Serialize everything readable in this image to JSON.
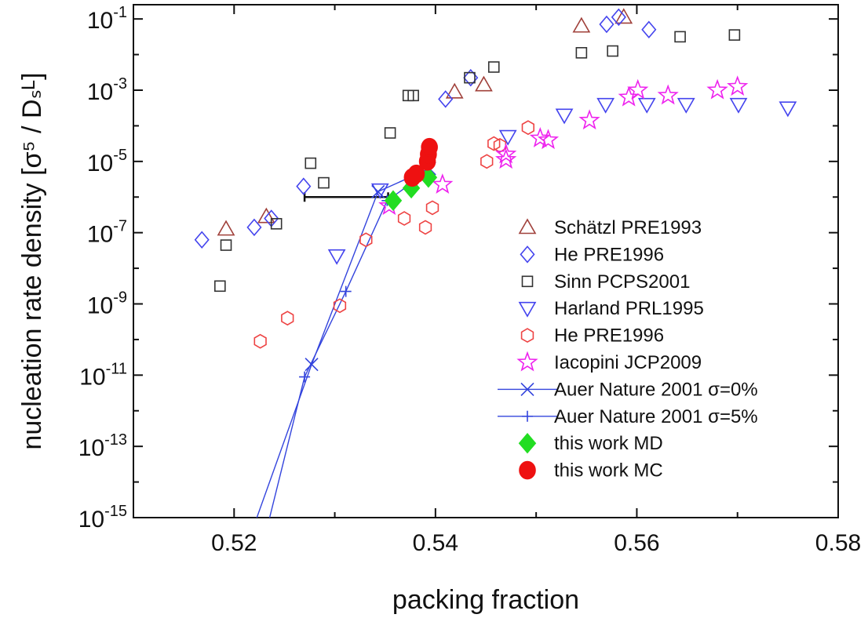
{
  "chart_data": {
    "type": "scatter",
    "xlabel": "packing fraction",
    "ylabel": "nucleation rate density [σ⁵ / Dₛᴸ]",
    "xlim": [
      0.51,
      0.58
    ],
    "ylim_log10": [
      -15,
      -0.6
    ],
    "y_scale": "log",
    "x_ticks": [
      {
        "value": 0.52,
        "label": "0.52"
      },
      {
        "value": 0.54,
        "label": "0.54"
      },
      {
        "value": 0.56,
        "label": "0.56"
      },
      {
        "value": 0.58,
        "label": "0.58"
      }
    ],
    "y_ticks": [
      {
        "exp": -1,
        "base": "10",
        "sup": "-1"
      },
      {
        "exp": -3,
        "base": "10",
        "sup": "-3"
      },
      {
        "exp": -5,
        "base": "10",
        "sup": "-5"
      },
      {
        "exp": -7,
        "base": "10",
        "sup": "-7"
      },
      {
        "exp": -9,
        "base": "10",
        "sup": "-9"
      },
      {
        "exp": -11,
        "base": "10",
        "sup": "-11"
      },
      {
        "exp": -13,
        "base": "10",
        "sup": "-13"
      },
      {
        "exp": -15,
        "base": "10",
        "sup": "-15"
      }
    ],
    "grid": false,
    "legend_position": "right",
    "series": [
      {
        "name": "Schätzl PRE1993",
        "marker": "triangle",
        "color": "#a0403a",
        "filled": false,
        "line": false,
        "points": [
          [
            0.5192,
            -6.9
          ],
          [
            0.5232,
            -6.55
          ],
          [
            0.5419,
            -3.05
          ],
          [
            0.5448,
            -2.85
          ],
          [
            0.5545,
            -1.2
          ],
          [
            0.5587,
            -0.95
          ]
        ]
      },
      {
        "name": "He PRE1996",
        "marker": "diamond",
        "color": "#4444ee",
        "filled": false,
        "line": false,
        "points": [
          [
            0.5168,
            -7.2
          ],
          [
            0.522,
            -6.85
          ],
          [
            0.5237,
            -6.6
          ],
          [
            0.5269,
            -5.7
          ],
          [
            0.541,
            -3.25
          ],
          [
            0.5435,
            -2.65
          ],
          [
            0.557,
            -1.15
          ],
          [
            0.5582,
            -0.95
          ],
          [
            0.5612,
            -1.3
          ]
        ]
      },
      {
        "name": "Sinn PCPS2001",
        "marker": "square",
        "color": "#333333",
        "filled": false,
        "line": false,
        "points": [
          [
            0.5186,
            -8.5
          ],
          [
            0.5192,
            -7.35
          ],
          [
            0.5242,
            -6.75
          ],
          [
            0.5276,
            -5.05
          ],
          [
            0.5289,
            -5.6
          ],
          [
            0.5355,
            -4.2
          ],
          [
            0.5373,
            -3.15
          ],
          [
            0.5378,
            -3.15
          ],
          [
            0.5434,
            -2.65
          ],
          [
            0.5458,
            -2.35
          ],
          [
            0.5545,
            -1.95
          ],
          [
            0.5576,
            -1.9
          ],
          [
            0.5643,
            -1.5
          ],
          [
            0.5697,
            -1.45
          ]
        ]
      },
      {
        "name": "Harland PRL1995",
        "marker": "triangle-down",
        "color": "#4444ee",
        "filled": false,
        "line": false,
        "points": [
          [
            0.5302,
            -7.65
          ],
          [
            0.5345,
            -5.8
          ],
          [
            0.5472,
            -4.3
          ],
          [
            0.5528,
            -3.7
          ],
          [
            0.5569,
            -3.4
          ],
          [
            0.561,
            -3.4
          ],
          [
            0.5649,
            -3.4
          ],
          [
            0.5701,
            -3.4
          ],
          [
            0.575,
            -3.5
          ]
        ]
      },
      {
        "name": "He PRE1996",
        "marker": "hexagon",
        "color": "#ee4444",
        "filled": false,
        "line": false,
        "points": [
          [
            0.5226,
            -10.05
          ],
          [
            0.5253,
            -9.4
          ],
          [
            0.5305,
            -9.05
          ],
          [
            0.5331,
            -7.2
          ],
          [
            0.5369,
            -6.6
          ],
          [
            0.539,
            -6.85
          ],
          [
            0.5397,
            -6.3
          ],
          [
            0.5451,
            -5.0
          ],
          [
            0.5458,
            -4.5
          ],
          [
            0.5464,
            -4.55
          ],
          [
            0.5492,
            -4.05
          ]
        ]
      },
      {
        "name": "Iacopini JCP2009",
        "marker": "star",
        "color": "#ee22ee",
        "filled": false,
        "line": false,
        "points": [
          [
            0.5354,
            -6.25
          ],
          [
            0.5407,
            -5.65
          ],
          [
            0.547,
            -4.8
          ],
          [
            0.547,
            -4.95
          ],
          [
            0.5504,
            -4.35
          ],
          [
            0.5512,
            -4.4
          ],
          [
            0.5553,
            -3.85
          ],
          [
            0.5592,
            -3.2
          ],
          [
            0.5601,
            -3.0
          ],
          [
            0.5631,
            -3.15
          ],
          [
            0.568,
            -3.0
          ],
          [
            0.57,
            -2.9
          ]
        ]
      },
      {
        "name": "Auer Nature 2001 σ=0%",
        "marker": "x",
        "color": "#3344dd",
        "filled": false,
        "line": true,
        "points": [
          [
            0.5215,
            -15.6
          ],
          [
            0.5277,
            -10.7
          ],
          [
            0.5343,
            -5.85
          ],
          [
            0.5394,
            -5.2
          ]
        ]
      },
      {
        "name": "Auer Nature 2001 σ=5%",
        "marker": "plus",
        "color": "#3344dd",
        "filled": false,
        "line": true,
        "points": [
          [
            0.523,
            -15.6
          ],
          [
            0.527,
            -11.05
          ],
          [
            0.5311,
            -8.65
          ],
          [
            0.5352,
            -6.1
          ],
          [
            0.5392,
            -5.3
          ]
        ]
      },
      {
        "name": "this work MD",
        "marker": "diamond",
        "color": "#22dd22",
        "filled": true,
        "line": false,
        "points": [
          [
            0.5358,
            -6.1
          ],
          [
            0.5376,
            -5.75
          ],
          [
            0.5393,
            -5.45
          ]
        ]
      },
      {
        "name": "this work MC",
        "marker": "circle",
        "color": "#ee1111",
        "filled": true,
        "line": false,
        "points": [
          [
            0.5377,
            -5.45
          ],
          [
            0.5381,
            -5.35
          ],
          [
            0.5392,
            -5.0
          ],
          [
            0.5393,
            -4.8
          ],
          [
            0.5394,
            -4.6
          ]
        ]
      }
    ],
    "annotations": [
      {
        "type": "errorbar-horizontal",
        "color": "#111111",
        "x": [
          0.527,
          0.5353
        ],
        "y_log10": -6.0
      }
    ]
  }
}
